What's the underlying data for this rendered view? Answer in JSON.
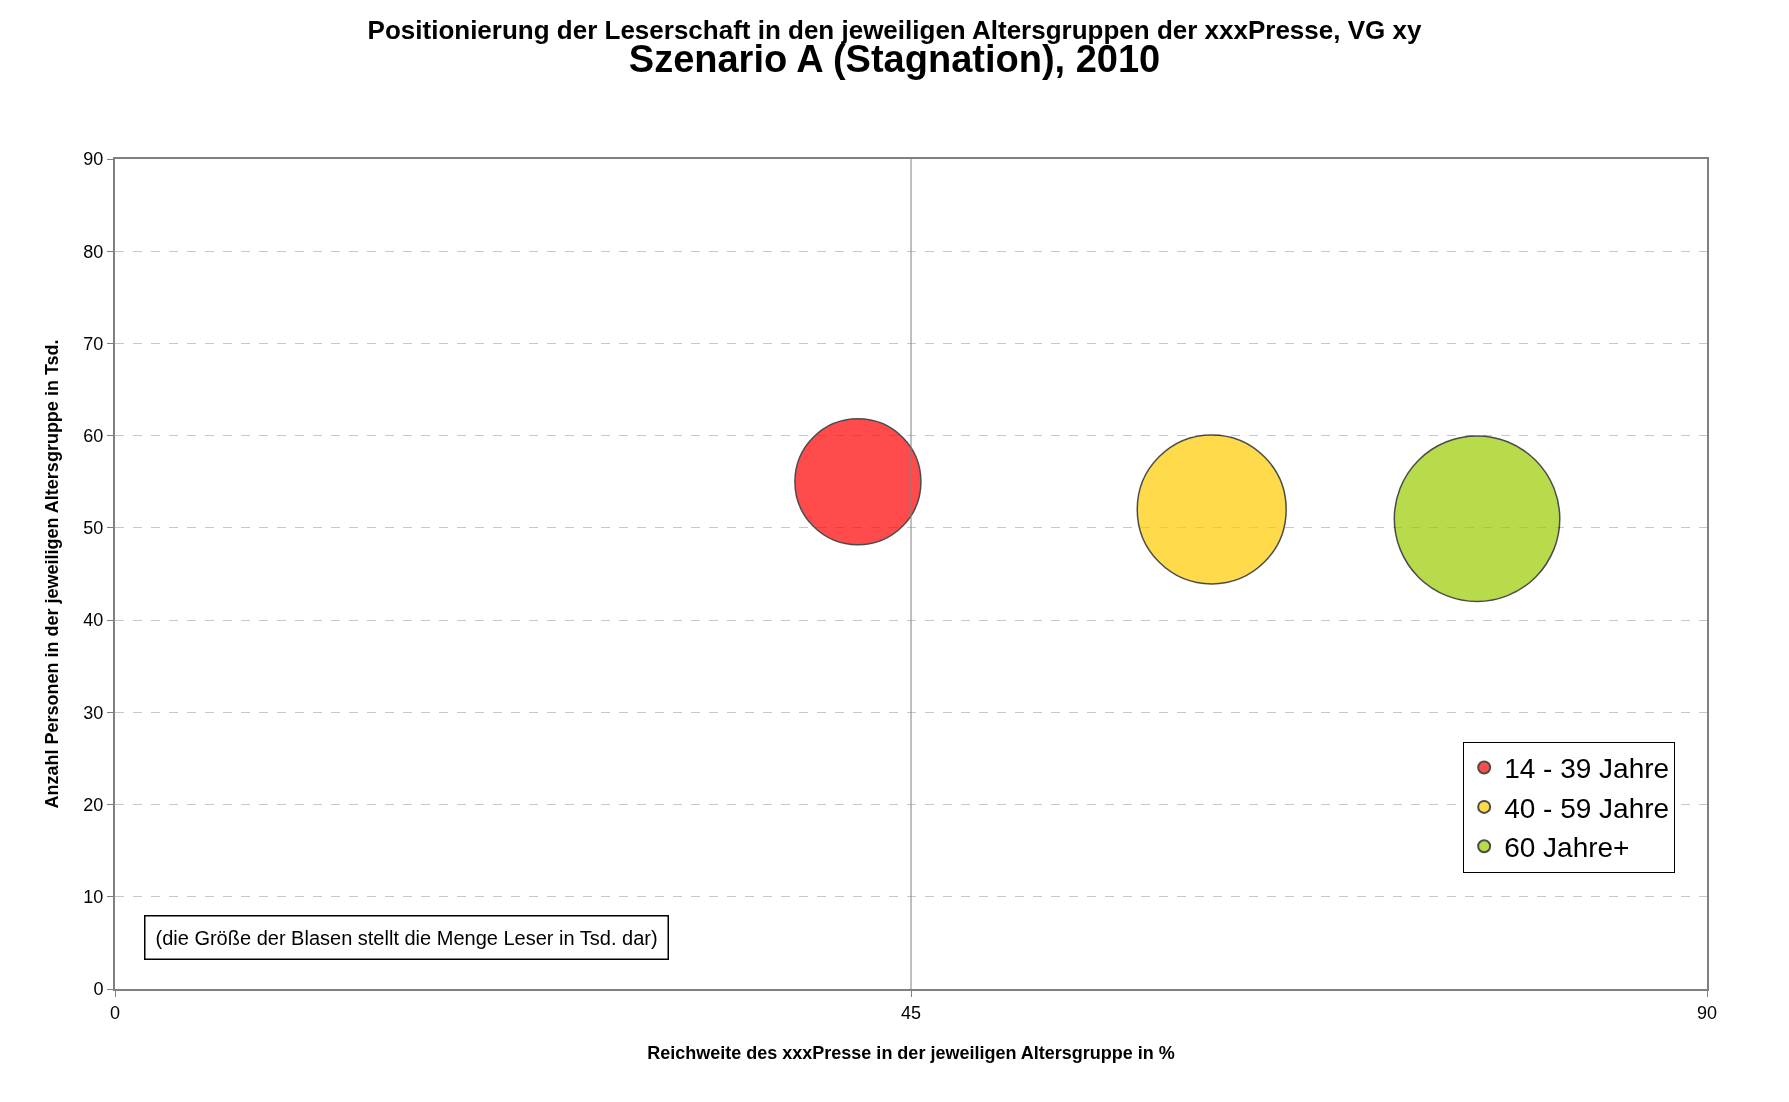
{
  "chart_data": {
    "type": "bubble",
    "title": "Positionierung der Leserschaft in den jeweiligen Altersgruppen der xxxPresse, VG xy",
    "subtitle": "Szenario A (Stagnation), 2010",
    "xlabel": "Reichweite des xxxPresse in der jeweiligen Altersgruppe in %",
    "ylabel": "Anzahl Personen in der jeweiligen Altersgruppe in Tsd.",
    "xlim": [
      0,
      90
    ],
    "xticks": [
      0,
      45,
      90
    ],
    "ylim": [
      0,
      90
    ],
    "yticks": [
      0,
      10,
      20,
      30,
      40,
      50,
      60,
      70,
      80,
      90
    ],
    "grid": "y",
    "legend": "bottom right",
    "series": [
      {
        "name": "14 - 39 Jahre",
        "color": "#ff0000",
        "x": [
          42
        ],
        "values": [
          55
        ],
        "sizes": [
          0.58
        ]
      },
      {
        "name": "40 - 59 Jahre",
        "color": "#ffcc00",
        "x": [
          62
        ],
        "values": [
          52
        ],
        "sizes": [
          0.81
        ]
      },
      {
        "name": "60 Jahre+",
        "color": "#99cc00",
        "x": [
          77
        ],
        "values": [
          51
        ],
        "sizes": [
          1
        ]
      }
    ],
    "ref_lines": [
      {
        "axis": "x",
        "value": 45,
        "color": "#808080"
      }
    ],
    "annotations": [
      "(die Größe der Blasen stellt die Menge Leser in Tsd. dar)"
    ]
  }
}
